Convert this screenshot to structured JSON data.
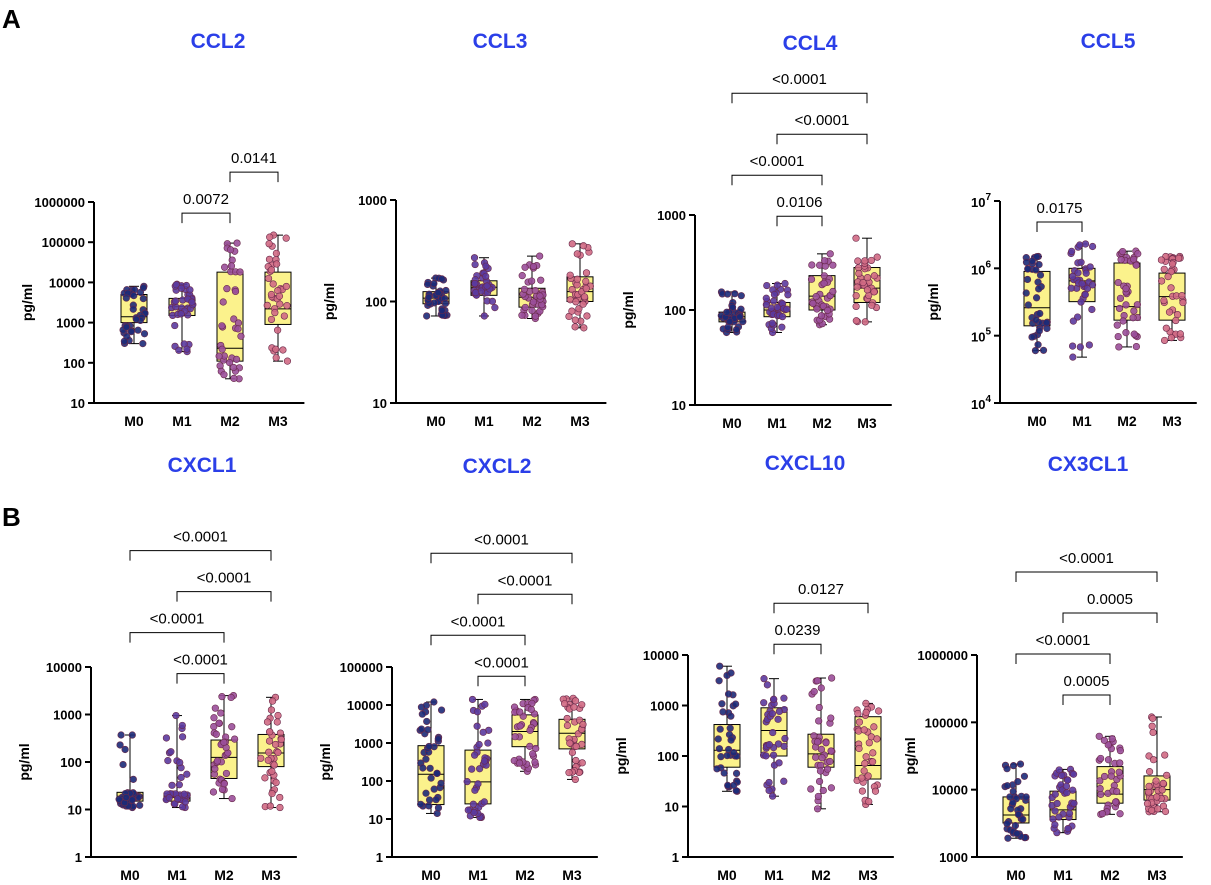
{
  "figure": {
    "panel_labels": [
      "A",
      "B"
    ]
  },
  "colors": {
    "title": "#2b3fe8",
    "box_fill": "#fbf28c",
    "points": [
      "#1c2a78",
      "#5b3a9e",
      "#9a4f9a",
      "#d06a84"
    ],
    "point_stroke": "#6a2a4a"
  },
  "chart_data": [
    {
      "id": "ccl2",
      "type": "box",
      "scale": "log",
      "title": "CCL2",
      "ylabel": "pg/ml",
      "ylim": [
        10,
        1000000
      ],
      "yticks": [
        10,
        100,
        1000,
        10000,
        100000,
        1000000
      ],
      "ytick_labels": [
        "10",
        "100",
        "1000",
        "10000",
        "100000",
        "1000000"
      ],
      "categories": [
        "M0",
        "M1",
        "M2",
        "M3"
      ],
      "boxes": [
        {
          "min": 300,
          "q1": 1000,
          "median": 1400,
          "q3": 5000,
          "max": 8000
        },
        {
          "min": 190,
          "q1": 1500,
          "median": 2500,
          "q3": 4000,
          "max": 9000
        },
        {
          "min": 40,
          "q1": 110,
          "median": 230,
          "q3": 18000,
          "max": 95000
        },
        {
          "min": 110,
          "q1": 900,
          "median": 2200,
          "q3": 18000,
          "max": 150000
        }
      ],
      "comparisons": [
        {
          "from": "M1",
          "to": "M2",
          "p": "0.0072"
        },
        {
          "from": "M2",
          "to": "M3",
          "p": "0.0141"
        }
      ]
    },
    {
      "id": "ccl3",
      "type": "box",
      "scale": "log",
      "title": "CCL3",
      "ylabel": "pg/ml",
      "ylim": [
        10,
        1000
      ],
      "yticks": [
        10,
        100,
        1000
      ],
      "ytick_labels": [
        "10",
        "100",
        "1000"
      ],
      "categories": [
        "M0",
        "M1",
        "M2",
        "M3"
      ],
      "boxes": [
        {
          "min": 72,
          "q1": 95,
          "median": 108,
          "q3": 125,
          "max": 170
        },
        {
          "min": 72,
          "q1": 115,
          "median": 138,
          "q3": 160,
          "max": 270
        },
        {
          "min": 68,
          "q1": 88,
          "median": 110,
          "q3": 135,
          "max": 280
        },
        {
          "min": 55,
          "q1": 100,
          "median": 125,
          "q3": 175,
          "max": 370
        }
      ],
      "comparisons": []
    },
    {
      "id": "ccl4",
      "type": "box",
      "scale": "log",
      "title": "CCL4",
      "ylabel": "pg/ml",
      "ylim": [
        10,
        1000
      ],
      "yticks": [
        10,
        100,
        1000
      ],
      "ytick_labels": [
        "10",
        "100",
        "1000"
      ],
      "categories": [
        "M0",
        "M1",
        "M2",
        "M3"
      ],
      "boxes": [
        {
          "min": 58,
          "q1": 75,
          "median": 85,
          "q3": 95,
          "max": 155
        },
        {
          "min": 58,
          "q1": 85,
          "median": 100,
          "q3": 120,
          "max": 190
        },
        {
          "min": 70,
          "q1": 100,
          "median": 140,
          "q3": 230,
          "max": 390
        },
        {
          "min": 75,
          "q1": 120,
          "median": 170,
          "q3": 280,
          "max": 570
        }
      ],
      "comparisons": [
        {
          "from": "M1",
          "to": "M2",
          "p": "0.0106"
        },
        {
          "from": "M0",
          "to": "M2",
          "p": "<0.0001"
        },
        {
          "from": "M1",
          "to": "M3",
          "p": "<0.0001"
        },
        {
          "from": "M0",
          "to": "M3",
          "p": "<0.0001"
        }
      ]
    },
    {
      "id": "ccl5",
      "type": "box",
      "scale": "log",
      "title": "CCL5",
      "ylabel": "pg/ml",
      "ylim": [
        10000,
        10000000
      ],
      "yticks": [
        10000,
        100000,
        1000000,
        10000000
      ],
      "ytick_labels": [
        "10",
        "10",
        "10",
        "10"
      ],
      "ytick_sups": [
        "4",
        "5",
        "6",
        "7"
      ],
      "categories": [
        "M0",
        "M1",
        "M2",
        "M3"
      ],
      "boxes": [
        {
          "min": 60000,
          "q1": 140000,
          "median": 260000,
          "q3": 900000,
          "max": 1500000
        },
        {
          "min": 48000,
          "q1": 320000,
          "median": 650000,
          "q3": 1000000,
          "max": 2300000
        },
        {
          "min": 68000,
          "q1": 170000,
          "median": 270000,
          "q3": 1200000,
          "max": 1800000
        },
        {
          "min": 85000,
          "q1": 170000,
          "median": 380000,
          "q3": 850000,
          "max": 1500000
        }
      ],
      "comparisons": [
        {
          "from": "M0",
          "to": "M1",
          "p": "0.0175"
        }
      ]
    },
    {
      "id": "cxcl1",
      "type": "box",
      "scale": "log",
      "title": "CXCL1",
      "ylabel": "pg/ml",
      "ylim": [
        1,
        10000
      ],
      "yticks": [
        1,
        10,
        100,
        1000,
        10000
      ],
      "ytick_labels": [
        "1",
        "10",
        "100",
        "1000",
        "10000"
      ],
      "categories": [
        "M0",
        "M1",
        "M2",
        "M3"
      ],
      "boxes": [
        {
          "min": 11,
          "q1": 15,
          "median": 19,
          "q3": 23,
          "max": 370
        },
        {
          "min": 11,
          "q1": 15,
          "median": 18,
          "q3": 22,
          "max": 950
        },
        {
          "min": 17,
          "q1": 45,
          "median": 125,
          "q3": 290,
          "max": 2500
        },
        {
          "min": 11,
          "q1": 80,
          "median": 155,
          "q3": 380,
          "max": 2300
        }
      ],
      "comparisons": [
        {
          "from": "M1",
          "to": "M2",
          "p": "<0.0001"
        },
        {
          "from": "M0",
          "to": "M2",
          "p": "<0.0001"
        },
        {
          "from": "M1",
          "to": "M3",
          "p": "<0.0001"
        },
        {
          "from": "M0",
          "to": "M3",
          "p": "<0.0001"
        }
      ]
    },
    {
      "id": "cxcl2",
      "type": "box",
      "scale": "log",
      "title": "CXCL2",
      "ylabel": "pg/ml",
      "ylim": [
        1,
        100000
      ],
      "yticks": [
        1,
        10,
        100,
        1000,
        10000,
        100000
      ],
      "ytick_labels": [
        "1",
        "10",
        "100",
        "1000",
        "10000",
        "100000"
      ],
      "categories": [
        "M0",
        "M1",
        "M2",
        "M3"
      ],
      "boxes": [
        {
          "min": 14,
          "q1": 24,
          "median": 150,
          "q3": 850,
          "max": 12000
        },
        {
          "min": 11,
          "q1": 25,
          "median": 95,
          "q3": 650,
          "max": 14000
        },
        {
          "min": 180,
          "q1": 800,
          "median": 2000,
          "q3": 5500,
          "max": 14000
        },
        {
          "min": 110,
          "q1": 700,
          "median": 1800,
          "q3": 4200,
          "max": 15000
        }
      ],
      "comparisons": [
        {
          "from": "M1",
          "to": "M2",
          "p": "<0.0001"
        },
        {
          "from": "M0",
          "to": "M2",
          "p": "<0.0001"
        },
        {
          "from": "M1",
          "to": "M3",
          "p": "<0.0001"
        },
        {
          "from": "M0",
          "to": "M3",
          "p": "<0.0001"
        }
      ]
    },
    {
      "id": "cxcl10",
      "type": "box",
      "scale": "log",
      "title": "CXCL10",
      "ylabel": "pg/ml",
      "ylim": [
        1,
        10000
      ],
      "yticks": [
        1,
        10,
        100,
        1000,
        10000
      ],
      "ytick_labels": [
        "1",
        "10",
        "100",
        "1000",
        "10000"
      ],
      "categories": [
        "M0",
        "M1",
        "M2",
        "M3"
      ],
      "boxes": [
        {
          "min": 20,
          "q1": 60,
          "median": 130,
          "q3": 420,
          "max": 6000
        },
        {
          "min": 16,
          "q1": 100,
          "median": 320,
          "q3": 900,
          "max": 3400
        },
        {
          "min": 9,
          "q1": 60,
          "median": 110,
          "q3": 270,
          "max": 3500
        },
        {
          "min": 11,
          "q1": 35,
          "median": 65,
          "q3": 600,
          "max": 1100
        }
      ],
      "comparisons": [
        {
          "from": "M1",
          "to": "M2",
          "p": "0.0239"
        },
        {
          "from": "M1",
          "to": "M3",
          "p": "0.0127"
        }
      ]
    },
    {
      "id": "cx3cl1",
      "type": "box",
      "scale": "log",
      "title": "CX3CL1",
      "ylabel": "pg/ml",
      "ylim": [
        1000,
        1000000
      ],
      "yticks": [
        1000,
        10000,
        100000,
        1000000
      ],
      "ytick_labels": [
        "1000",
        "10000",
        "100000",
        "1000000"
      ],
      "categories": [
        "M0",
        "M1",
        "M2",
        "M3"
      ],
      "boxes": [
        {
          "min": 1900,
          "q1": 3200,
          "median": 4200,
          "q3": 7800,
          "max": 24000
        },
        {
          "min": 2300,
          "q1": 3600,
          "median": 5000,
          "q3": 9500,
          "max": 20000
        },
        {
          "min": 4300,
          "q1": 6300,
          "median": 8600,
          "q3": 22000,
          "max": 62000
        },
        {
          "min": 4700,
          "q1": 7000,
          "median": 10000,
          "q3": 16000,
          "max": 120000
        }
      ],
      "comparisons": [
        {
          "from": "M1",
          "to": "M2",
          "p": "0.0005"
        },
        {
          "from": "M0",
          "to": "M2",
          "p": "<0.0001"
        },
        {
          "from": "M1",
          "to": "M3",
          "p": "0.0005"
        },
        {
          "from": "M0",
          "to": "M3",
          "p": "<0.0001"
        }
      ]
    }
  ]
}
